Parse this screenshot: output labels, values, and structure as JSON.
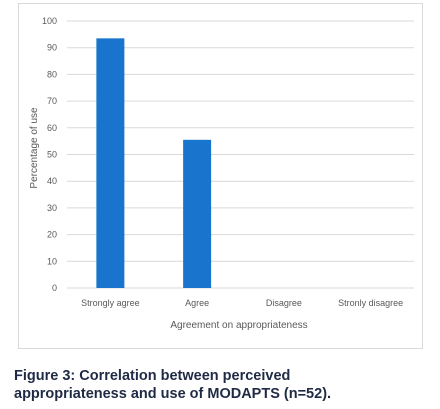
{
  "chart_data": {
    "type": "bar",
    "categories": [
      "Strongly agree",
      "Agree",
      "Disagree",
      "Stronly disagree"
    ],
    "values": [
      93.5,
      55.5,
      0,
      0
    ],
    "xlabel": "Agreement on appropriateness",
    "ylabel": "Percentage of use",
    "ylim": [
      0,
      100
    ],
    "yticks": [
      0,
      10,
      20,
      30,
      40,
      50,
      60,
      70,
      80,
      90,
      100
    ],
    "grid": true,
    "bar_color": "#1874cd",
    "grid_color": "#d9d9d9",
    "axis_text_color": "#595959"
  },
  "caption": {
    "line1": "Figure 3: Correlation between perceived",
    "line2": "appropriateness and use of MODAPTS (n=52)."
  }
}
